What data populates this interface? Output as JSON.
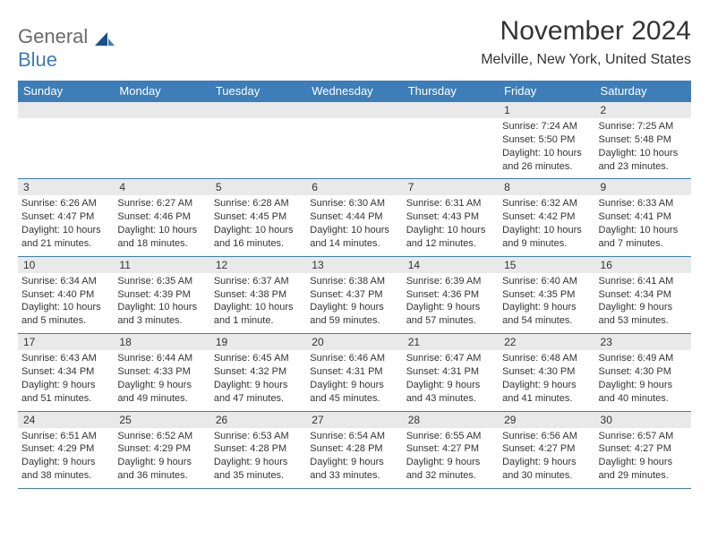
{
  "logo": {
    "line1": "General",
    "line2": "Blue"
  },
  "title": "November 2024",
  "location": "Melville, New York, United States",
  "colors": {
    "header_bg": "#3d7db8",
    "header_text": "#ffffff",
    "daynum_bg": "#e9e9e9",
    "border": "#3d7db8",
    "text": "#333333",
    "logo_gray": "#6a6a6a",
    "logo_blue": "#3d7db8",
    "page_bg": "#ffffff"
  },
  "font": {
    "base_family": "Arial",
    "cell_fontsize": 11,
    "header_fontsize": 13,
    "title_fontsize": 30,
    "location_fontsize": 16
  },
  "weekdays": [
    "Sunday",
    "Monday",
    "Tuesday",
    "Wednesday",
    "Thursday",
    "Friday",
    "Saturday"
  ],
  "weeks": [
    [
      null,
      null,
      null,
      null,
      null,
      {
        "d": "1",
        "sr": "Sunrise: 7:24 AM",
        "ss": "Sunset: 5:50 PM",
        "dl1": "Daylight: 10 hours",
        "dl2": "and 26 minutes."
      },
      {
        "d": "2",
        "sr": "Sunrise: 7:25 AM",
        "ss": "Sunset: 5:48 PM",
        "dl1": "Daylight: 10 hours",
        "dl2": "and 23 minutes."
      }
    ],
    [
      {
        "d": "3",
        "sr": "Sunrise: 6:26 AM",
        "ss": "Sunset: 4:47 PM",
        "dl1": "Daylight: 10 hours",
        "dl2": "and 21 minutes."
      },
      {
        "d": "4",
        "sr": "Sunrise: 6:27 AM",
        "ss": "Sunset: 4:46 PM",
        "dl1": "Daylight: 10 hours",
        "dl2": "and 18 minutes."
      },
      {
        "d": "5",
        "sr": "Sunrise: 6:28 AM",
        "ss": "Sunset: 4:45 PM",
        "dl1": "Daylight: 10 hours",
        "dl2": "and 16 minutes."
      },
      {
        "d": "6",
        "sr": "Sunrise: 6:30 AM",
        "ss": "Sunset: 4:44 PM",
        "dl1": "Daylight: 10 hours",
        "dl2": "and 14 minutes."
      },
      {
        "d": "7",
        "sr": "Sunrise: 6:31 AM",
        "ss": "Sunset: 4:43 PM",
        "dl1": "Daylight: 10 hours",
        "dl2": "and 12 minutes."
      },
      {
        "d": "8",
        "sr": "Sunrise: 6:32 AM",
        "ss": "Sunset: 4:42 PM",
        "dl1": "Daylight: 10 hours",
        "dl2": "and 9 minutes."
      },
      {
        "d": "9",
        "sr": "Sunrise: 6:33 AM",
        "ss": "Sunset: 4:41 PM",
        "dl1": "Daylight: 10 hours",
        "dl2": "and 7 minutes."
      }
    ],
    [
      {
        "d": "10",
        "sr": "Sunrise: 6:34 AM",
        "ss": "Sunset: 4:40 PM",
        "dl1": "Daylight: 10 hours",
        "dl2": "and 5 minutes."
      },
      {
        "d": "11",
        "sr": "Sunrise: 6:35 AM",
        "ss": "Sunset: 4:39 PM",
        "dl1": "Daylight: 10 hours",
        "dl2": "and 3 minutes."
      },
      {
        "d": "12",
        "sr": "Sunrise: 6:37 AM",
        "ss": "Sunset: 4:38 PM",
        "dl1": "Daylight: 10 hours",
        "dl2": "and 1 minute."
      },
      {
        "d": "13",
        "sr": "Sunrise: 6:38 AM",
        "ss": "Sunset: 4:37 PM",
        "dl1": "Daylight: 9 hours",
        "dl2": "and 59 minutes."
      },
      {
        "d": "14",
        "sr": "Sunrise: 6:39 AM",
        "ss": "Sunset: 4:36 PM",
        "dl1": "Daylight: 9 hours",
        "dl2": "and 57 minutes."
      },
      {
        "d": "15",
        "sr": "Sunrise: 6:40 AM",
        "ss": "Sunset: 4:35 PM",
        "dl1": "Daylight: 9 hours",
        "dl2": "and 54 minutes."
      },
      {
        "d": "16",
        "sr": "Sunrise: 6:41 AM",
        "ss": "Sunset: 4:34 PM",
        "dl1": "Daylight: 9 hours",
        "dl2": "and 53 minutes."
      }
    ],
    [
      {
        "d": "17",
        "sr": "Sunrise: 6:43 AM",
        "ss": "Sunset: 4:34 PM",
        "dl1": "Daylight: 9 hours",
        "dl2": "and 51 minutes."
      },
      {
        "d": "18",
        "sr": "Sunrise: 6:44 AM",
        "ss": "Sunset: 4:33 PM",
        "dl1": "Daylight: 9 hours",
        "dl2": "and 49 minutes."
      },
      {
        "d": "19",
        "sr": "Sunrise: 6:45 AM",
        "ss": "Sunset: 4:32 PM",
        "dl1": "Daylight: 9 hours",
        "dl2": "and 47 minutes."
      },
      {
        "d": "20",
        "sr": "Sunrise: 6:46 AM",
        "ss": "Sunset: 4:31 PM",
        "dl1": "Daylight: 9 hours",
        "dl2": "and 45 minutes."
      },
      {
        "d": "21",
        "sr": "Sunrise: 6:47 AM",
        "ss": "Sunset: 4:31 PM",
        "dl1": "Daylight: 9 hours",
        "dl2": "and 43 minutes."
      },
      {
        "d": "22",
        "sr": "Sunrise: 6:48 AM",
        "ss": "Sunset: 4:30 PM",
        "dl1": "Daylight: 9 hours",
        "dl2": "and 41 minutes."
      },
      {
        "d": "23",
        "sr": "Sunrise: 6:49 AM",
        "ss": "Sunset: 4:30 PM",
        "dl1": "Daylight: 9 hours",
        "dl2": "and 40 minutes."
      }
    ],
    [
      {
        "d": "24",
        "sr": "Sunrise: 6:51 AM",
        "ss": "Sunset: 4:29 PM",
        "dl1": "Daylight: 9 hours",
        "dl2": "and 38 minutes."
      },
      {
        "d": "25",
        "sr": "Sunrise: 6:52 AM",
        "ss": "Sunset: 4:29 PM",
        "dl1": "Daylight: 9 hours",
        "dl2": "and 36 minutes."
      },
      {
        "d": "26",
        "sr": "Sunrise: 6:53 AM",
        "ss": "Sunset: 4:28 PM",
        "dl1": "Daylight: 9 hours",
        "dl2": "and 35 minutes."
      },
      {
        "d": "27",
        "sr": "Sunrise: 6:54 AM",
        "ss": "Sunset: 4:28 PM",
        "dl1": "Daylight: 9 hours",
        "dl2": "and 33 minutes."
      },
      {
        "d": "28",
        "sr": "Sunrise: 6:55 AM",
        "ss": "Sunset: 4:27 PM",
        "dl1": "Daylight: 9 hours",
        "dl2": "and 32 minutes."
      },
      {
        "d": "29",
        "sr": "Sunrise: 6:56 AM",
        "ss": "Sunset: 4:27 PM",
        "dl1": "Daylight: 9 hours",
        "dl2": "and 30 minutes."
      },
      {
        "d": "30",
        "sr": "Sunrise: 6:57 AM",
        "ss": "Sunset: 4:27 PM",
        "dl1": "Daylight: 9 hours",
        "dl2": "and 29 minutes."
      }
    ]
  ]
}
